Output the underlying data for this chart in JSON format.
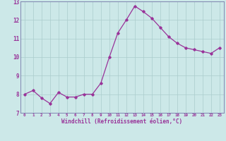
{
  "x": [
    0,
    1,
    2,
    3,
    4,
    5,
    6,
    7,
    8,
    9,
    10,
    11,
    12,
    13,
    14,
    15,
    16,
    17,
    18,
    19,
    20,
    21,
    22,
    23
  ],
  "y": [
    8.0,
    8.2,
    7.8,
    7.5,
    8.1,
    7.85,
    7.85,
    8.0,
    8.0,
    8.6,
    10.0,
    11.3,
    12.0,
    12.75,
    12.45,
    12.1,
    11.6,
    11.1,
    10.75,
    10.5,
    10.4,
    10.3,
    10.2,
    10.5
  ],
  "line_color": "#993399",
  "marker": "D",
  "marker_size": 1.8,
  "bg_color": "#cce8e8",
  "grid_color": "#aacccc",
  "xlabel": "Windchill (Refroidissement éolien,°C)",
  "xlabel_color": "#993399",
  "tick_color": "#993399",
  "ylim": [
    7,
    13
  ],
  "xlim_min": -0.5,
  "xlim_max": 23.5,
  "yticks": [
    7,
    8,
    9,
    10,
    11,
    12,
    13
  ],
  "xticks": [
    0,
    1,
    2,
    3,
    4,
    5,
    6,
    7,
    8,
    9,
    10,
    11,
    12,
    13,
    14,
    15,
    16,
    17,
    18,
    19,
    20,
    21,
    22,
    23
  ],
  "spine_color": "#7777aa"
}
